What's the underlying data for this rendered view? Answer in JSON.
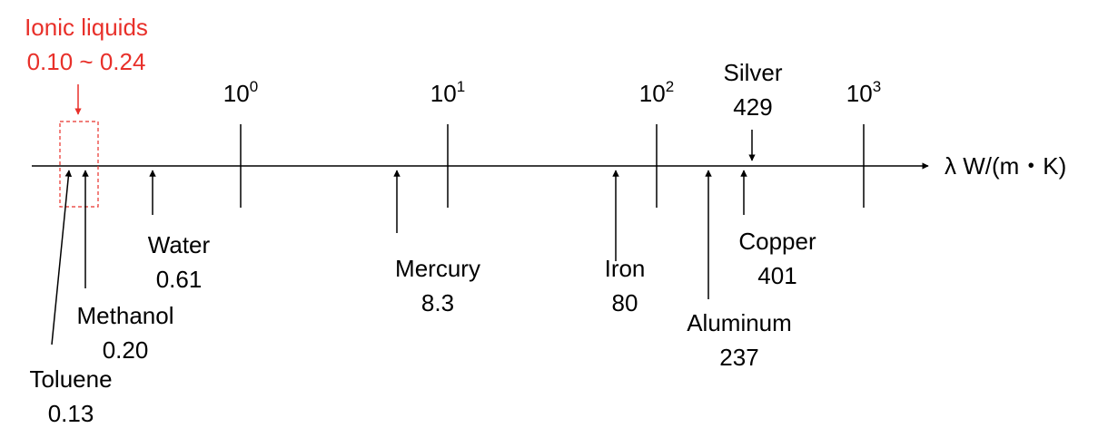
{
  "axis": {
    "label": "λ W/(m・K)",
    "ticks": [
      {
        "base": "10",
        "exp": "0"
      },
      {
        "base": "10",
        "exp": "1"
      },
      {
        "base": "10",
        "exp": "2"
      },
      {
        "base": "10",
        "exp": "3"
      }
    ]
  },
  "highlight": {
    "name": "Ionic liquids",
    "range": "0.10 ~ 0.24"
  },
  "materials": [
    {
      "name": "Toluene",
      "value": "0.13"
    },
    {
      "name": "Methanol",
      "value": "0.20"
    },
    {
      "name": "Water",
      "value": "0.61"
    },
    {
      "name": "Mercury",
      "value": "8.3"
    },
    {
      "name": "Iron",
      "value": "80"
    },
    {
      "name": "Aluminum",
      "value": "237"
    },
    {
      "name": "Copper",
      "value": "401"
    },
    {
      "name": "Silver",
      "value": "429"
    }
  ]
}
